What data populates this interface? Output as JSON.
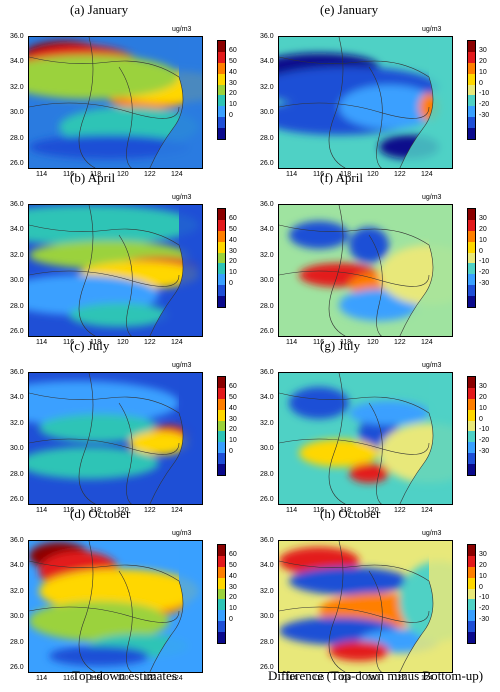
{
  "unit_label": "ug/m3",
  "left_column_label": "Top-down estimates",
  "right_column_label": "Difference (Top-down minus Bottom-up)",
  "x_ticks": [
    "114",
    "116",
    "118",
    "120",
    "122",
    "124"
  ],
  "y_ticks": [
    "36.0",
    "34.0",
    "32.0",
    "30.0",
    "28.0",
    "26.0"
  ],
  "colorbar_left": {
    "labels": [
      "60",
      "50",
      "40",
      "30",
      "20",
      "10",
      "0"
    ],
    "colors": [
      "#8b0000",
      "#e31a1c",
      "#ff7f00",
      "#ffd700",
      "#9bd23c",
      "#2ec4b6",
      "#3aa0ff",
      "#1f4fd6",
      "#0a0a8c"
    ]
  },
  "colorbar_right": {
    "labels": [
      "30",
      "20",
      "10",
      "0",
      "-10",
      "-20",
      "-30"
    ],
    "colors": [
      "#8b0000",
      "#e31a1c",
      "#ff7f00",
      "#ffd700",
      "#e8e87a",
      "#4fd1c5",
      "#3aa0ff",
      "#1f4fd6",
      "#0a0a8c"
    ]
  },
  "panels": [
    {
      "caption": "(a)  January",
      "col": "left",
      "row": 0,
      "base": "#2a7be0",
      "blobs": [
        [
          "#8b0000",
          35,
          18,
          40,
          14
        ],
        [
          "#e31a1c",
          50,
          28,
          60,
          20
        ],
        [
          "#ff7f00",
          120,
          62,
          40,
          10
        ],
        [
          "#ffd700",
          140,
          50,
          60,
          16
        ],
        [
          "#9bd23c",
          60,
          40,
          90,
          22
        ],
        [
          "#2ec4b6",
          100,
          90,
          70,
          20
        ],
        [
          "#1f4fd6",
          80,
          110,
          80,
          12
        ]
      ]
    },
    {
      "caption": "(e)  January",
      "col": "right",
      "row": 0,
      "base": "#4fd1c5",
      "blobs": [
        [
          "#0a0a8c",
          40,
          30,
          60,
          14
        ],
        [
          "#1f4fd6",
          70,
          50,
          90,
          20
        ],
        [
          "#1f4fd6",
          60,
          80,
          80,
          18
        ],
        [
          "#3aa0ff",
          110,
          70,
          50,
          22
        ],
        [
          "#ff7f00",
          150,
          70,
          10,
          14
        ],
        [
          "#0a0a8c",
          130,
          110,
          30,
          12
        ]
      ]
    },
    {
      "caption": "(b)  April",
      "col": "left",
      "row": 1,
      "base": "#1f4fd6",
      "blobs": [
        [
          "#2ec4b6",
          60,
          20,
          110,
          20
        ],
        [
          "#9bd23c",
          80,
          50,
          80,
          14
        ],
        [
          "#e31a1c",
          130,
          62,
          40,
          10
        ],
        [
          "#ffd700",
          110,
          70,
          60,
          14
        ],
        [
          "#3aa0ff",
          50,
          90,
          80,
          20
        ],
        [
          "#2ec4b6",
          90,
          110,
          50,
          12
        ]
      ]
    },
    {
      "caption": "(f)  April",
      "col": "right",
      "row": 1,
      "base": "#9fe3a0",
      "blobs": [
        [
          "#1f4fd6",
          40,
          30,
          30,
          14
        ],
        [
          "#1f4fd6",
          90,
          40,
          20,
          18
        ],
        [
          "#e31a1c",
          60,
          70,
          40,
          12
        ],
        [
          "#ff7f00",
          110,
          80,
          40,
          14
        ],
        [
          "#3aa0ff",
          100,
          100,
          40,
          16
        ],
        [
          "#e8e87a",
          150,
          70,
          50,
          30
        ]
      ]
    },
    {
      "caption": "(c)  July",
      "col": "left",
      "row": 2,
      "base": "#1f4fd6",
      "blobs": [
        [
          "#3aa0ff",
          50,
          30,
          100,
          22
        ],
        [
          "#2ec4b6",
          70,
          55,
          60,
          14
        ],
        [
          "#e31a1c",
          140,
          62,
          20,
          10
        ],
        [
          "#ffd700",
          130,
          70,
          30,
          12
        ],
        [
          "#2ec4b6",
          60,
          90,
          70,
          16
        ]
      ]
    },
    {
      "caption": "(g)  July",
      "col": "right",
      "row": 2,
      "base": "#4fd1c5",
      "blobs": [
        [
          "#1f4fd6",
          40,
          30,
          30,
          16
        ],
        [
          "#1f4fd6",
          100,
          60,
          20,
          20
        ],
        [
          "#ffd700",
          60,
          80,
          40,
          14
        ],
        [
          "#e31a1c",
          90,
          100,
          20,
          10
        ],
        [
          "#e8e87a",
          150,
          80,
          50,
          30
        ],
        [
          "#3aa0ff",
          110,
          40,
          40,
          12
        ]
      ]
    },
    {
      "caption": "(d)  October",
      "col": "left",
      "row": 3,
      "base": "#3aa0ff",
      "blobs": [
        [
          "#8b0000",
          30,
          15,
          30,
          14
        ],
        [
          "#e31a1c",
          50,
          30,
          40,
          20
        ],
        [
          "#ff7f00",
          110,
          60,
          50,
          16
        ],
        [
          "#ffd700",
          90,
          50,
          80,
          22
        ],
        [
          "#9bd23c",
          70,
          80,
          70,
          20
        ],
        [
          "#2ec4b6",
          110,
          105,
          50,
          12
        ],
        [
          "#1f4fd6",
          70,
          115,
          50,
          10
        ]
      ]
    },
    {
      "caption": "(h)  October",
      "col": "right",
      "row": 3,
      "base": "#e8e87a",
      "blobs": [
        [
          "#e31a1c",
          40,
          20,
          40,
          14
        ],
        [
          "#1f4fd6",
          70,
          40,
          60,
          14
        ],
        [
          "#ff7f00",
          100,
          70,
          60,
          18
        ],
        [
          "#1f4fd6",
          60,
          90,
          60,
          14
        ],
        [
          "#3aa0ff",
          120,
          100,
          40,
          12
        ],
        [
          "#4fd1c5",
          160,
          60,
          40,
          40
        ],
        [
          "#e31a1c",
          80,
          110,
          30,
          10
        ]
      ]
    }
  ]
}
